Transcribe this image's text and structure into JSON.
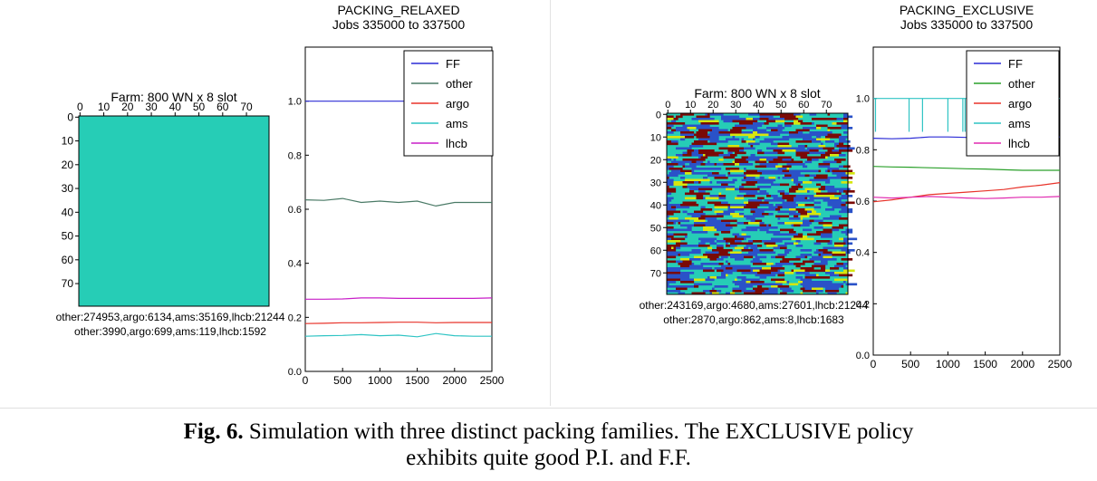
{
  "caption": {
    "label": "Fig. 6.",
    "line1": " Simulation with three distinct packing families. The EXCLUSIVE policy",
    "line2": "exhibits quite good P.I. and F.F."
  },
  "chart_data": [
    {
      "type": "heatmap",
      "title": "Farm: 800 WN x 8 slot",
      "xticks": [
        0,
        10,
        20,
        30,
        40,
        50,
        60,
        70
      ],
      "yticks": [
        0,
        10,
        20,
        30,
        40,
        50,
        60,
        70
      ],
      "rows": 80,
      "cols": 80,
      "pattern": "random-speckle",
      "colors": {
        "background": "#26cdb6",
        "dark": "#7a0a06",
        "accent": "#d6e60f",
        "blue": "#2a52c8"
      },
      "summary_lines": [
        "other:274953,argo:6134,ams:35169,lhcb:21244",
        "other:3990,argo:699,ams:119,lhcb:1592"
      ]
    },
    {
      "type": "line",
      "title": "PACKING_RELAXED",
      "subtitle": "Jobs 335000 to 337500",
      "xlim": [
        0,
        2500
      ],
      "ylim": [
        0,
        1.2
      ],
      "xticks": [
        0,
        500,
        1000,
        1500,
        2000,
        2500
      ],
      "yticks": [
        0.0,
        0.2,
        0.4,
        0.6,
        0.8,
        1.0
      ],
      "legend": "top-right",
      "x": [
        0,
        250,
        500,
        750,
        1000,
        1250,
        1500,
        1750,
        2000,
        2250,
        2500
      ],
      "series": [
        {
          "name": "FF",
          "color": "#2b2bd6",
          "values": [
            1.0,
            1.0,
            1.0,
            1.0,
            1.0,
            1.0,
            1.0,
            1.0,
            1.0,
            1.0,
            1.0
          ]
        },
        {
          "name": "other",
          "color": "#4a7a66",
          "values": [
            0.635,
            0.633,
            0.64,
            0.625,
            0.63,
            0.625,
            0.63,
            0.612,
            0.625,
            0.625,
            0.625
          ]
        },
        {
          "name": "argo",
          "color": "#e8332a",
          "values": [
            0.177,
            0.178,
            0.18,
            0.18,
            0.181,
            0.182,
            0.182,
            0.18,
            0.181,
            0.181,
            0.181
          ]
        },
        {
          "name": "ams",
          "color": "#2fc4c4",
          "values": [
            0.13,
            0.132,
            0.133,
            0.136,
            0.132,
            0.134,
            0.128,
            0.14,
            0.132,
            0.13,
            0.13
          ]
        },
        {
          "name": "lhcb",
          "color": "#c81ec8",
          "values": [
            0.267,
            0.267,
            0.268,
            0.272,
            0.272,
            0.27,
            0.27,
            0.27,
            0.27,
            0.27,
            0.272
          ]
        }
      ]
    },
    {
      "type": "heatmap",
      "title": "Farm: 800 WN x 8 slot",
      "xticks": [
        0,
        10,
        20,
        30,
        40,
        50,
        60,
        70
      ],
      "yticks": [
        0,
        10,
        20,
        30,
        40,
        50,
        60,
        70
      ],
      "rows": 80,
      "cols": 80,
      "pattern": "horizontal-bands",
      "colors": {
        "background": "#26cdb6",
        "dark": "#7a0a06",
        "accent": "#d6e60f",
        "blue": "#2a52c8"
      },
      "summary_lines": [
        "other:243169,argo:4680,ams:27601,lhcb:21244",
        "other:2870,argo:862,ams:8,lhcb:1683"
      ]
    },
    {
      "type": "line",
      "title": "PACKING_EXCLUSIVE",
      "subtitle": "Jobs 335000 to 337500",
      "xlim": [
        0,
        2500
      ],
      "ylim": [
        0,
        1.2
      ],
      "xticks": [
        0,
        500,
        1000,
        1500,
        2000,
        2500
      ],
      "yticks": [
        0.0,
        0.2,
        0.4,
        0.6,
        0.8,
        1.0
      ],
      "legend": "top-right",
      "x": [
        0,
        250,
        500,
        750,
        1000,
        1250,
        1500,
        1750,
        2000,
        2250,
        2500
      ],
      "series": [
        {
          "name": "FF",
          "color": "#2b2bd6",
          "values": [
            0.845,
            0.843,
            0.845,
            0.85,
            0.85,
            0.848,
            0.85,
            0.85,
            0.85,
            0.85,
            0.85
          ]
        },
        {
          "name": "other",
          "color": "#2aa02a",
          "values": [
            0.735,
            0.733,
            0.732,
            0.73,
            0.728,
            0.726,
            0.725,
            0.722,
            0.72,
            0.72,
            0.72
          ]
        },
        {
          "name": "argo",
          "color": "#e8332a",
          "values": [
            0.597,
            0.605,
            0.615,
            0.625,
            0.63,
            0.635,
            0.64,
            0.645,
            0.655,
            0.662,
            0.672
          ]
        },
        {
          "name": "ams",
          "color": "#2fc4c4",
          "values": [
            1.0,
            1.0,
            1.0,
            1.0,
            1.0,
            1.0,
            1.0,
            1.0,
            1.0,
            1.0,
            1.0
          ]
        },
        {
          "name": "lhcb",
          "color": "#e02ab0",
          "values": [
            0.615,
            0.612,
            0.615,
            0.618,
            0.615,
            0.612,
            0.61,
            0.612,
            0.615,
            0.615,
            0.618
          ]
        }
      ],
      "spikes": {
        "series": "ams",
        "x": [
          30,
          480,
          660,
          1000,
          1200,
          1230,
          1270,
          2480
        ],
        "min": 0.87
      }
    }
  ]
}
